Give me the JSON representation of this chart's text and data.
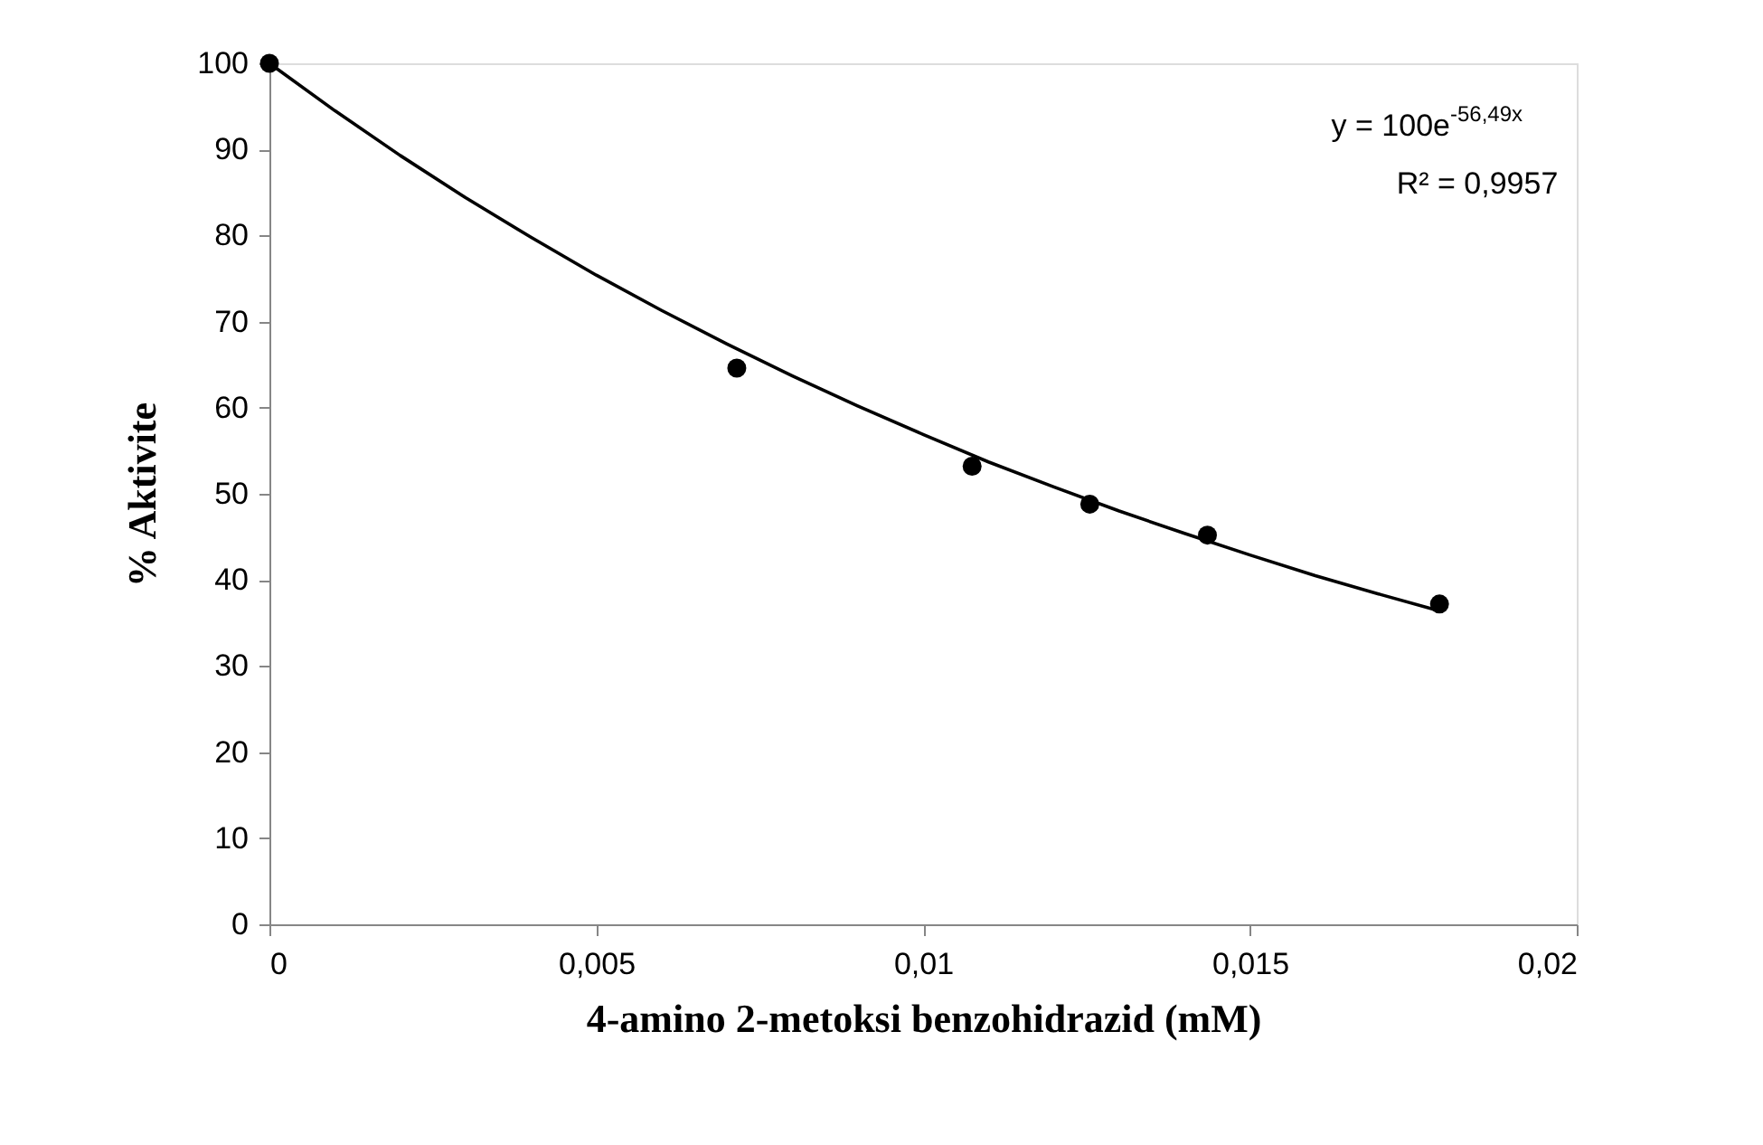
{
  "chart_data": {
    "type": "scatter",
    "xlabel": "4-amino 2-metoksi benzohidrazid (mM)",
    "ylabel": "% Aktivite",
    "x": [
      0,
      0.00715,
      0.01075,
      0.01255,
      0.01435,
      0.0179
    ],
    "series": [
      {
        "color": "#000000",
        "marker": "circle",
        "values": [
          100,
          64.6,
          53.2,
          48.8,
          45.2,
          37.2
        ]
      },
      {
        "type": "line",
        "color": "#000000",
        "marker": "none",
        "line_style": "solid",
        "x": [
          0,
          0.001,
          0.002,
          0.003,
          0.004,
          0.005,
          0.006,
          0.007,
          0.008,
          0.009,
          0.01,
          0.011,
          0.012,
          0.013,
          0.014,
          0.015,
          0.016,
          0.017,
          0.0179
        ],
        "values": [
          100,
          94.5,
          89.3,
          84.4,
          79.8,
          75.4,
          71.3,
          67.4,
          63.7,
          60.2,
          56.9,
          53.7,
          50.8,
          48.0,
          45.4,
          42.9,
          40.5,
          38.3,
          36.4
        ]
      }
    ],
    "xlim": [
      0,
      0.02
    ],
    "xticks": [
      0,
      {
        "value": 0.005,
        "label": "0,005"
      },
      {
        "value": 0.01,
        "label": "0,01"
      },
      {
        "value": 0.015,
        "label": "0,015"
      },
      {
        "value": 0.02,
        "label": "0,02"
      }
    ],
    "ylim": [
      0,
      100
    ],
    "yticks": [
      0,
      10,
      20,
      30,
      40,
      50,
      60,
      70,
      80,
      90,
      100
    ],
    "grid": false,
    "annotations": [
      "y = 100e$^{-56,49x}$",
      "R² = 0,9957"
    ]
  }
}
